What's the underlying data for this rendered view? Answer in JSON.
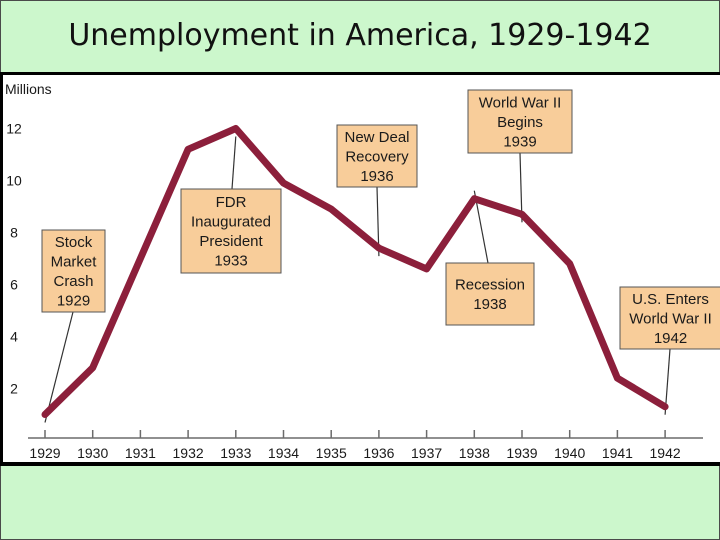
{
  "slide": {
    "title": "Unemployment in America, 1929-1942"
  },
  "chart_data": {
    "type": "line",
    "title": "",
    "xlabel": "",
    "ylabel": "Millions",
    "categories": [
      "1929",
      "1930",
      "1931",
      "1932",
      "1933",
      "1934",
      "1935",
      "1936",
      "1937",
      "1938",
      "1939",
      "1940",
      "1941",
      "1942"
    ],
    "series": [
      {
        "values": [
          1.0,
          2.8,
          7.0,
          11.2,
          12.0,
          9.9,
          8.9,
          7.4,
          6.6,
          9.3,
          8.7,
          6.8,
          2.4,
          1.3
        ]
      }
    ],
    "yticks": [
      "2",
      "4",
      "6",
      "8",
      "10",
      "12"
    ],
    "ylim": [
      0,
      13.2
    ],
    "grid": false,
    "line_color": "#8c1f3b",
    "box_color": "#f8cd9a",
    "annotations": [
      {
        "lines": [
          "Stock",
          "Market",
          "Crash",
          "1929"
        ],
        "year": 1929
      },
      {
        "lines": [
          "FDR",
          "Inaugurated",
          "President",
          "1933"
        ],
        "year": 1933
      },
      {
        "lines": [
          "New Deal",
          "Recovery",
          "1936"
        ],
        "year": 1936
      },
      {
        "lines": [
          "World War II",
          "Begins",
          "1939"
        ],
        "year": 1939
      },
      {
        "lines": [
          "Recession",
          "1938"
        ],
        "year": 1938
      },
      {
        "lines": [
          "U.S. Enters",
          "World War II",
          "1942"
        ],
        "year": 1942
      }
    ]
  }
}
